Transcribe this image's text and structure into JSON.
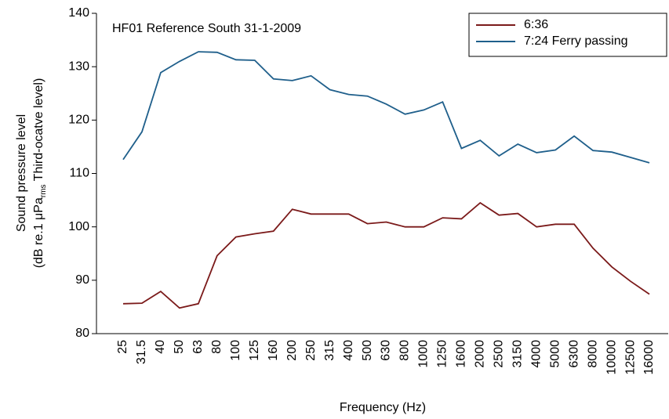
{
  "chart_data": {
    "type": "line",
    "title": "HF01 Reference South 31-1-2009",
    "x_label": "Frequency (Hz)",
    "y_label": {
      "line1": "Sound pressure level",
      "line2_start": "(dB re.1 μPa",
      "line2_sub": "rms",
      "line2_end": " Third-ocatve level)"
    },
    "categories": [
      "25",
      "31.5",
      "40",
      "50",
      "63",
      "80",
      "100",
      "125",
      "160",
      "200",
      "250",
      "315",
      "400",
      "500",
      "630",
      "800",
      "1000",
      "1250",
      "1600",
      "2000",
      "2500",
      "3150",
      "4000",
      "5000",
      "6300",
      "8000",
      "10000",
      "12500",
      "16000"
    ],
    "series": [
      {
        "name": "6:36",
        "color": "#7b1a1a",
        "values": [
          85.6,
          85.7,
          87.9,
          84.8,
          85.6,
          94.6,
          98.1,
          98.7,
          99.2,
          103.3,
          102.4,
          102.4,
          102.4,
          100.6,
          100.9,
          100.0,
          100.0,
          101.7,
          101.5,
          104.5,
          102.2,
          102.5,
          100.0,
          100.5,
          100.5,
          96.0,
          92.5,
          89.8,
          87.4
        ]
      },
      {
        "name": "7:24 Ferry passing",
        "color": "#1f5f8b",
        "values": [
          112.6,
          117.8,
          128.9,
          131.0,
          132.8,
          132.7,
          131.3,
          131.2,
          127.7,
          127.4,
          128.3,
          125.7,
          124.8,
          124.5,
          123.0,
          121.1,
          121.9,
          123.4,
          114.7,
          116.2,
          113.3,
          115.5,
          113.9,
          114.4,
          117.0,
          114.3,
          114.0,
          113.0,
          112.0
        ]
      }
    ],
    "ylim": [
      80,
      140
    ],
    "yticks": [
      80,
      90,
      100,
      110,
      120,
      130,
      140
    ],
    "legend": "upper right",
    "grid": false
  }
}
